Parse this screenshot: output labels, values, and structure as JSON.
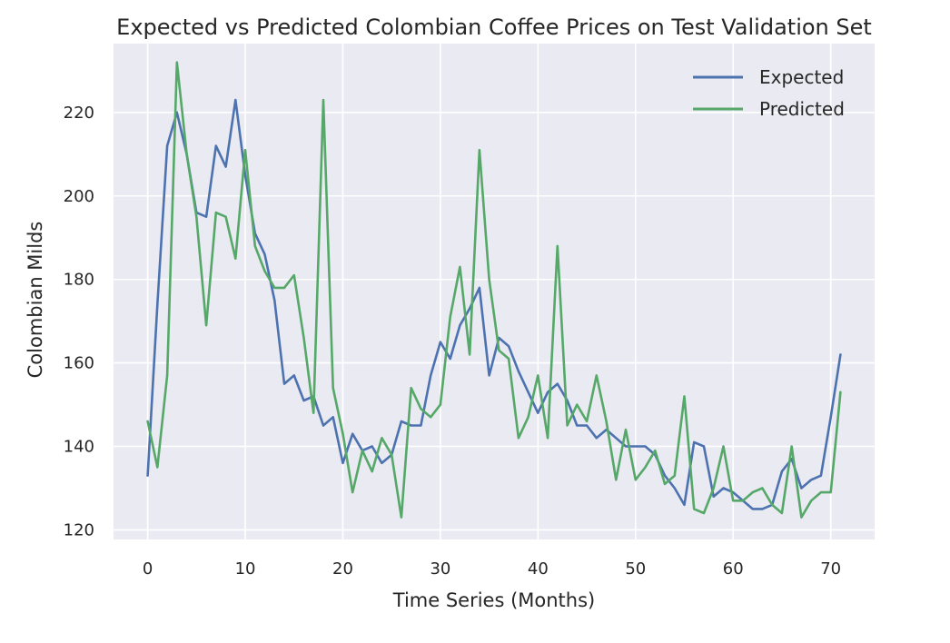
{
  "chart_data": {
    "type": "line",
    "title": "Expected vs Predicted Colombian Coffee Prices on Test Validation Set",
    "xlabel": "Time Series (Months)",
    "ylabel": "Colombian Milds",
    "xlim": [
      -3.5,
      74.5
    ],
    "ylim": [
      117.7,
      236.5
    ],
    "xticks": [
      0,
      10,
      20,
      30,
      40,
      50,
      60,
      70
    ],
    "yticks": [
      120,
      140,
      160,
      180,
      200,
      220
    ],
    "grid": true,
    "legend_position": "top-right",
    "background": "#eaeaf2",
    "series": [
      {
        "name": "Expected",
        "color": "#4c72b0",
        "x": [
          0,
          1,
          2,
          3,
          4,
          5,
          6,
          7,
          8,
          9,
          10,
          11,
          12,
          13,
          14,
          15,
          16,
          17,
          18,
          19,
          20,
          21,
          22,
          23,
          24,
          25,
          26,
          27,
          28,
          29,
          30,
          31,
          32,
          33,
          34,
          35,
          36,
          37,
          38,
          39,
          40,
          41,
          42,
          43,
          44,
          45,
          46,
          47,
          48,
          49,
          50,
          51,
          52,
          53,
          54,
          55,
          56,
          57,
          58,
          59,
          60,
          61,
          62,
          63,
          64,
          65,
          66,
          67,
          68,
          69,
          70,
          71
        ],
        "values": [
          133,
          174,
          212,
          220,
          210,
          196,
          195,
          212,
          207,
          223,
          205,
          191,
          186,
          175,
          155,
          157,
          151,
          152,
          145,
          147,
          136,
          143,
          139,
          140,
          136,
          138,
          146,
          145,
          145,
          157,
          165,
          161,
          169,
          173,
          178,
          157,
          166,
          164,
          158,
          153,
          148,
          153,
          155,
          151,
          145,
          145,
          142,
          144,
          142,
          140,
          140,
          140,
          138,
          133,
          130,
          126,
          141,
          140,
          128,
          130,
          129,
          127,
          125,
          125,
          126,
          134,
          137,
          130,
          132,
          133,
          147,
          162
        ]
      },
      {
        "name": "Predicted",
        "color": "#55a868",
        "x": [
          0,
          1,
          2,
          3,
          4,
          5,
          6,
          7,
          8,
          9,
          10,
          11,
          12,
          13,
          14,
          15,
          16,
          17,
          18,
          19,
          20,
          21,
          22,
          23,
          24,
          25,
          26,
          27,
          28,
          29,
          30,
          31,
          32,
          33,
          34,
          35,
          36,
          37,
          38,
          39,
          40,
          41,
          42,
          43,
          44,
          45,
          46,
          47,
          48,
          49,
          50,
          51,
          52,
          53,
          54,
          55,
          56,
          57,
          58,
          59,
          60,
          61,
          62,
          63,
          64,
          65,
          66,
          67,
          68,
          69,
          70,
          71
        ],
        "values": [
          146,
          135,
          157,
          232,
          210,
          195,
          169,
          196,
          195,
          185,
          211,
          188,
          182,
          178,
          178,
          181,
          166,
          148,
          223,
          154,
          143,
          129,
          139,
          134,
          142,
          138,
          123,
          154,
          149,
          147,
          150,
          171,
          183,
          162,
          211,
          180,
          163,
          161,
          142,
          147,
          157,
          142,
          188,
          145,
          150,
          146,
          157,
          146,
          132,
          144,
          132,
          135,
          139,
          131,
          133,
          152,
          125,
          124,
          130,
          140,
          127,
          127,
          129,
          130,
          126,
          124,
          140,
          123,
          127,
          129,
          129,
          153
        ]
      }
    ]
  }
}
